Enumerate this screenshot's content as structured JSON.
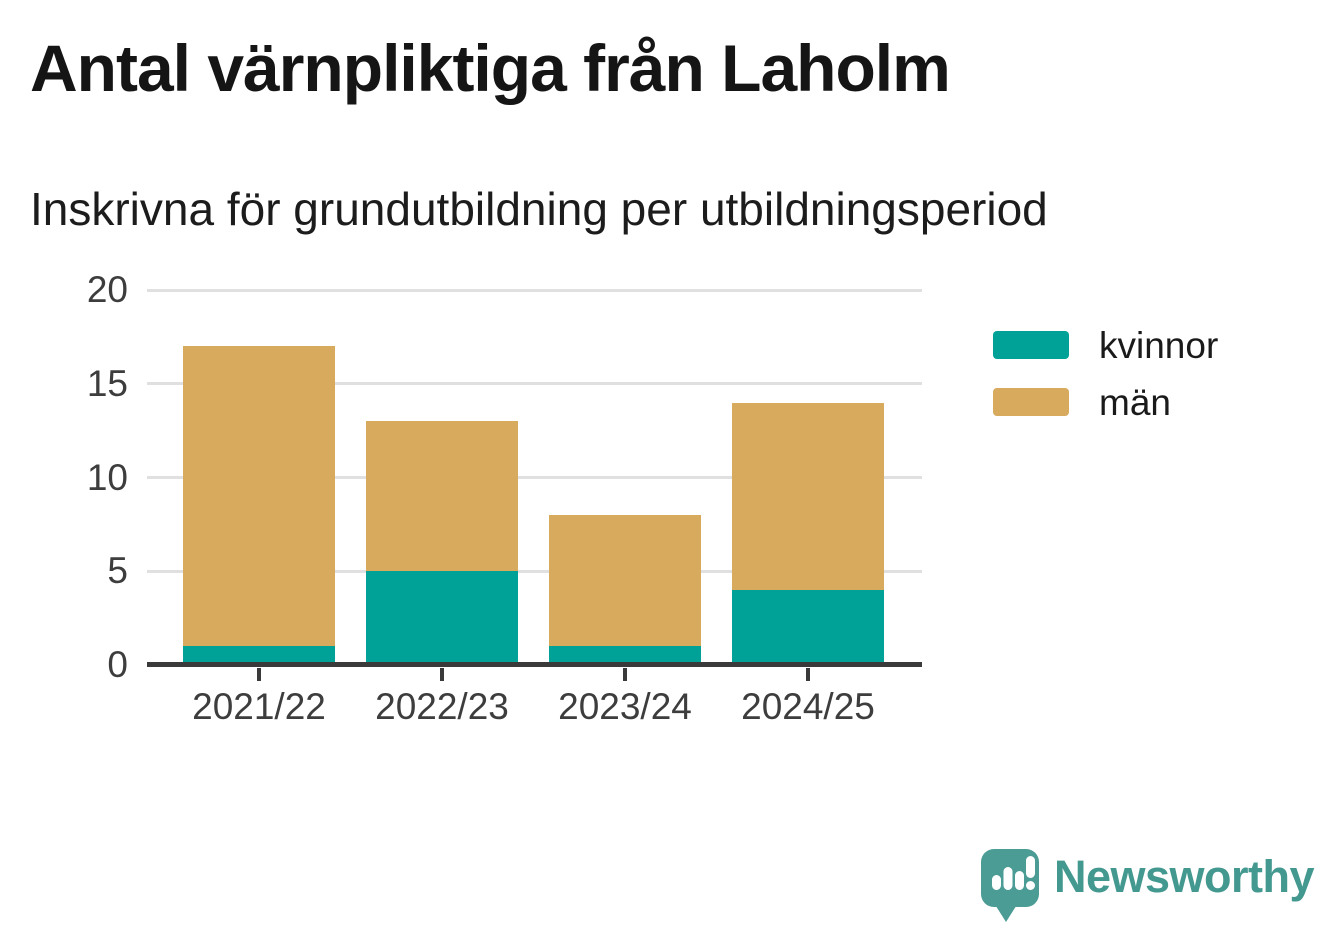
{
  "title": "Antal värnpliktiga från Laholm",
  "subtitle": "Inskrivna för grundutbildning per utbildningsperiod",
  "chart_data": {
    "type": "bar",
    "stacked": true,
    "title": "Antal värnpliktiga från Laholm",
    "subtitle": "Inskrivna för grundutbildning per utbildningsperiod",
    "categories": [
      "2021/22",
      "2022/23",
      "2023/24",
      "2024/25"
    ],
    "series": [
      {
        "name": "kvinnor",
        "color": "#00a298",
        "values": [
          1,
          5,
          1,
          4
        ]
      },
      {
        "name": "män",
        "color": "#d7aa5d",
        "values": [
          16,
          8,
          7,
          10
        ]
      }
    ],
    "totals": [
      17,
      13,
      8,
      14
    ],
    "xlabel": "",
    "ylabel": "",
    "ylim": [
      0,
      20
    ],
    "yticks": [
      0,
      5,
      10,
      15,
      20
    ],
    "grid": true,
    "legend_position": "right",
    "gridline_color": "#e0e0e0",
    "axis_color": "#3a3a3a"
  },
  "branding": {
    "logo_text": "Newsworthy",
    "logo_color": "#43988f",
    "icon": "newsworthy-speech-bubble-bar-chart-icon",
    "icon_color": "#4a9c95"
  }
}
